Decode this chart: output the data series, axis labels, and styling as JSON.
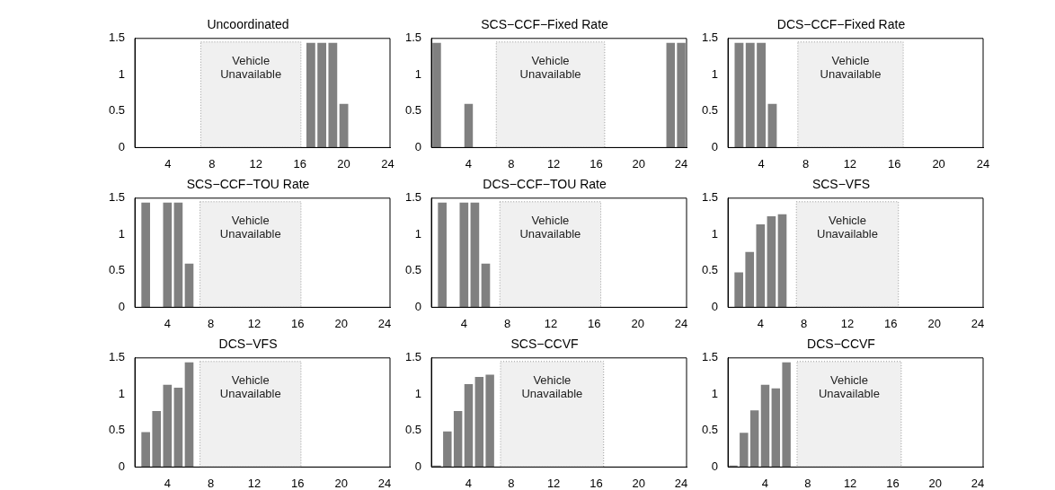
{
  "chart_data": [
    {
      "type": "bar",
      "title": "Uncoordinated",
      "x": [
        17,
        18,
        19,
        20
      ],
      "values": [
        1.44,
        1.44,
        1.44,
        0.6
      ],
      "color": "#808080",
      "xlim": [
        1,
        24.2
      ],
      "xticks": [
        4,
        8,
        12,
        16,
        20,
        24
      ],
      "ylim": [
        0,
        1.5
      ],
      "yticks": [
        0,
        0.5,
        1,
        1.5
      ],
      "grid": false,
      "bands": [
        {
          "axis": "x",
          "from": 7,
          "to": 16.1,
          "label": "Vehicle Unavailable"
        }
      ]
    },
    {
      "type": "bar",
      "title": "SCS−CCF−Fixed Rate",
      "x": [
        1,
        4,
        23,
        24
      ],
      "values": [
        1.44,
        0.6,
        1.44,
        1.44
      ],
      "color": "#808080",
      "xlim": [
        0.5,
        24.5
      ],
      "xticks": [
        4,
        8,
        12,
        16,
        20,
        24
      ],
      "ylim": [
        0,
        1.5
      ],
      "yticks": [
        0,
        0.5,
        1,
        1.5
      ],
      "grid": false,
      "bands": [
        {
          "axis": "x",
          "from": 6.6,
          "to": 16.8,
          "label": "Vehicle Unavailable"
        }
      ]
    },
    {
      "type": "bar",
      "title": "DCS−CCF−Fixed Rate",
      "x": [
        2,
        3,
        4,
        5
      ],
      "values": [
        1.44,
        1.44,
        1.44,
        0.6
      ],
      "color": "#808080",
      "xlim": [
        1,
        24
      ],
      "xticks": [
        4,
        8,
        12,
        16,
        20,
        24
      ],
      "ylim": [
        0,
        1.5
      ],
      "yticks": [
        0,
        0.5,
        1,
        1.5
      ],
      "grid": false,
      "bands": [
        {
          "axis": "x",
          "from": 7.3,
          "to": 16.8,
          "label": "Vehicle Unavailable"
        }
      ]
    },
    {
      "type": "bar",
      "title": "SCS−CCF−TOU Rate",
      "x": [
        2,
        4,
        5,
        6
      ],
      "values": [
        1.44,
        1.44,
        1.44,
        0.6
      ],
      "color": "#808080",
      "xlim": [
        1,
        24.5
      ],
      "xticks": [
        4,
        8,
        12,
        16,
        20,
        24
      ],
      "ylim": [
        0,
        1.5
      ],
      "yticks": [
        0,
        0.5,
        1,
        1.5
      ],
      "grid": false,
      "bands": [
        {
          "axis": "x",
          "from": 7,
          "to": 16.3,
          "label": "Vehicle Unavailable"
        }
      ]
    },
    {
      "type": "bar",
      "title": "DCS−CCF−TOU Rate",
      "x": [
        2,
        4,
        5,
        6
      ],
      "values": [
        1.44,
        1.44,
        1.44,
        0.6
      ],
      "color": "#808080",
      "xlim": [
        1,
        24.5
      ],
      "xticks": [
        4,
        8,
        12,
        16,
        20,
        24
      ],
      "ylim": [
        0,
        1.5
      ],
      "yticks": [
        0,
        0.5,
        1,
        1.5
      ],
      "grid": false,
      "bands": [
        {
          "axis": "x",
          "from": 7.3,
          "to": 16.6,
          "label": "Vehicle Unavailable"
        }
      ]
    },
    {
      "type": "bar",
      "title": "SCS−VFS",
      "x": [
        2,
        3,
        4,
        5,
        6
      ],
      "values": [
        0.48,
        0.76,
        1.14,
        1.25,
        1.28
      ],
      "color": "#808080",
      "xlim": [
        1,
        24.5
      ],
      "xticks": [
        4,
        8,
        12,
        16,
        20,
        24
      ],
      "ylim": [
        0,
        1.5
      ],
      "yticks": [
        0,
        0.5,
        1,
        1.5
      ],
      "grid": false,
      "bands": [
        {
          "axis": "x",
          "from": 7.3,
          "to": 16.7,
          "label": "Vehicle Unavailable"
        }
      ]
    },
    {
      "type": "bar",
      "title": "DCS−VFS",
      "x": [
        2,
        3,
        4,
        5,
        6
      ],
      "values": [
        0.48,
        0.77,
        1.13,
        1.09,
        1.44
      ],
      "color": "#808080",
      "xlim": [
        1,
        24.5
      ],
      "xticks": [
        4,
        8,
        12,
        16,
        20,
        24
      ],
      "ylim": [
        0,
        1.5
      ],
      "yticks": [
        0,
        0.5,
        1,
        1.5
      ],
      "grid": false,
      "bands": [
        {
          "axis": "x",
          "from": 7,
          "to": 16.3,
          "label": "Vehicle Unavailable"
        }
      ]
    },
    {
      "type": "bar",
      "title": "SCS−CCVF",
      "x": [
        1,
        2,
        3,
        4,
        5,
        6
      ],
      "values": [
        0.02,
        0.49,
        0.77,
        1.14,
        1.24,
        1.27
      ],
      "color": "#808080",
      "xlim": [
        0.5,
        24.5
      ],
      "xticks": [
        4,
        8,
        12,
        16,
        20,
        24
      ],
      "ylim": [
        0,
        1.5
      ],
      "yticks": [
        0,
        0.5,
        1,
        1.5
      ],
      "grid": false,
      "bands": [
        {
          "axis": "x",
          "from": 7,
          "to": 16.7,
          "label": "Vehicle Unavailable"
        }
      ]
    },
    {
      "type": "bar",
      "title": "DCS−CCVF",
      "x": [
        1,
        2,
        3,
        4,
        5,
        6
      ],
      "values": [
        0.02,
        0.47,
        0.78,
        1.13,
        1.08,
        1.44
      ],
      "color": "#808080",
      "xlim": [
        0.5,
        24.5
      ],
      "xticks": [
        4,
        8,
        12,
        16,
        20,
        24
      ],
      "ylim": [
        0,
        1.5
      ],
      "yticks": [
        0,
        0.5,
        1,
        1.5
      ],
      "grid": false,
      "bands": [
        {
          "axis": "x",
          "from": 7,
          "to": 16.8,
          "label": "Vehicle Unavailable"
        }
      ]
    }
  ]
}
